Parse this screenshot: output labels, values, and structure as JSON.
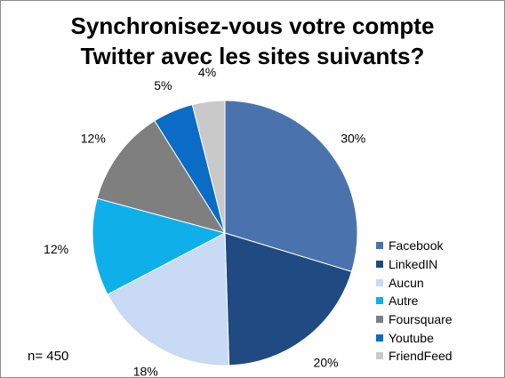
{
  "chart_data": {
    "type": "pie",
    "title": [
      "Synchronisez-vous votre compte",
      "Twitter avec les sites suivants?"
    ],
    "series": [
      {
        "name": "Facebook",
        "value": 30,
        "label": "30%",
        "color": "#4a73ad"
      },
      {
        "name": "LinkedIN",
        "value": 20,
        "label": "20%",
        "color": "#1f4a82"
      },
      {
        "name": "Aucun",
        "value": 18,
        "label": "18%",
        "color": "#c8daf4"
      },
      {
        "name": "Autre",
        "value": 12,
        "label": "12%",
        "color": "#0fb0ea"
      },
      {
        "name": "Foursquare",
        "value": 12,
        "label": "12%",
        "color": "#7f7f7f"
      },
      {
        "name": "Youtube",
        "value": 5,
        "label": "5%",
        "color": "#0a6cc4"
      },
      {
        "name": "FriendFeed",
        "value": 4,
        "label": "4%",
        "color": "#c9c9c9"
      }
    ],
    "legend_position": "right",
    "start": "12 o'clock",
    "direction": "clockwise"
  },
  "note": "n= 450"
}
